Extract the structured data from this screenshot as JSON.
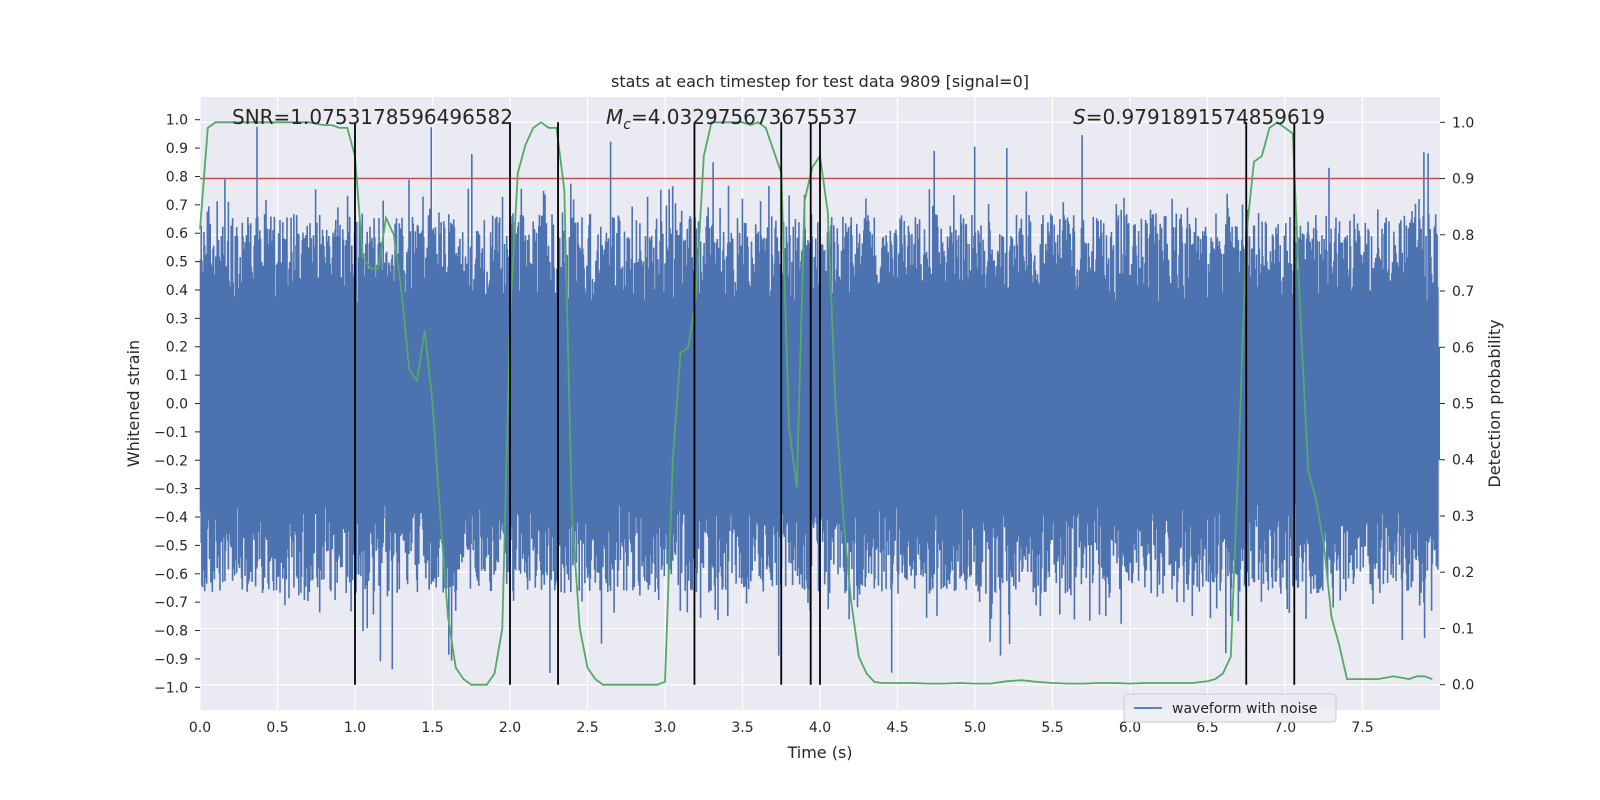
{
  "chart_data": {
    "type": "line",
    "title": "stats at each timestep for test data 9809 [signal=0]",
    "xlabel": "Time (s)",
    "ylabel": "Whitened strain",
    "y2label": "Detection probability",
    "xlim": [
      0,
      8
    ],
    "ylim": [
      -1.08,
      1.08
    ],
    "y2lim": [
      -0.045,
      1.045
    ],
    "x_ticks": [
      0.0,
      0.5,
      1.0,
      1.5,
      2.0,
      2.5,
      3.0,
      3.5,
      4.0,
      4.5,
      5.0,
      5.5,
      6.0,
      6.5,
      7.0,
      7.5
    ],
    "x_tick_labels": [
      "0.0",
      "0.5",
      "1.0",
      "1.5",
      "2.0",
      "2.5",
      "3.0",
      "3.5",
      "4.0",
      "4.5",
      "5.0",
      "5.5",
      "6.0",
      "6.5",
      "7.0",
      "7.5"
    ],
    "y_ticks": [
      1.0,
      0.9,
      0.8,
      0.7,
      0.6,
      0.5,
      0.4,
      0.3,
      0.2,
      0.1,
      0.0,
      -0.1,
      -0.2,
      -0.3,
      -0.4,
      -0.5,
      -0.6,
      -0.7,
      -0.8,
      -0.9,
      -1.0
    ],
    "y_tick_labels": [
      "1.0",
      "0.9",
      "0.8",
      "0.7",
      "0.6",
      "0.5",
      "0.4",
      "0.3",
      "0.2",
      "0.1",
      "0.0",
      "−0.1",
      "−0.2",
      "−0.3",
      "−0.4",
      "−0.5",
      "−0.6",
      "−0.7",
      "−0.8",
      "−0.9",
      "−1.0"
    ],
    "y2_ticks": [
      1.0,
      0.9,
      0.8,
      0.7,
      0.6,
      0.5,
      0.4,
      0.3,
      0.2,
      0.1,
      0.0
    ],
    "y2_tick_labels": [
      "1.0",
      "0.9",
      "0.8",
      "0.7",
      "0.6",
      "0.5",
      "0.4",
      "0.3",
      "0.2",
      "0.1",
      "0.0"
    ],
    "grid": true,
    "legend_position": "lower-right",
    "stats_text": {
      "snr": "SNR=1.0753178596496582",
      "mc_symbol": "M",
      "mc_sub": "c",
      "mc_value": "=4.032975673675537",
      "s_symbol": "S",
      "s_value": "=0.9791891574859619"
    },
    "threshold": {
      "value": 0.9,
      "axis": "right",
      "color": "#c44e52"
    },
    "vertical_lines": {
      "x": [
        1.0,
        2.0,
        2.31,
        3.19,
        3.75,
        3.94,
        4.0,
        6.75,
        7.06
      ],
      "ymin": 0.0,
      "ymax": 1.0,
      "axis": "right",
      "color": "#000000"
    },
    "series": [
      {
        "name": "waveform with noise",
        "axis": "left",
        "color": "#4c72b0",
        "kind": "noise-band",
        "x_range": [
          0,
          8
        ],
        "dense_band": [
          -0.2,
          0.2
        ],
        "typical_peaks": [
          0.4,
          0.6
        ],
        "max_peaks": [
          -1.0,
          1.0
        ]
      },
      {
        "axis": "right",
        "color": "#55a868",
        "x": [
          0.0,
          0.05,
          0.1,
          0.15,
          0.2,
          0.3,
          0.4,
          0.5,
          0.6,
          0.7,
          0.8,
          0.85,
          0.9,
          0.95,
          1.0,
          1.05,
          1.1,
          1.15,
          1.2,
          1.25,
          1.3,
          1.35,
          1.4,
          1.45,
          1.5,
          1.55,
          1.6,
          1.65,
          1.7,
          1.75,
          1.8,
          1.85,
          1.9,
          1.95,
          2.0,
          2.05,
          2.1,
          2.15,
          2.2,
          2.25,
          2.3,
          2.35,
          2.4,
          2.45,
          2.5,
          2.55,
          2.6,
          2.65,
          2.7,
          2.75,
          2.8,
          2.85,
          2.9,
          2.95,
          3.0,
          3.05,
          3.1,
          3.15,
          3.2,
          3.25,
          3.3,
          3.35,
          3.4,
          3.45,
          3.5,
          3.55,
          3.6,
          3.65,
          3.7,
          3.75,
          3.8,
          3.85,
          3.9,
          3.95,
          4.0,
          4.05,
          4.1,
          4.15,
          4.2,
          4.25,
          4.3,
          4.35,
          4.4,
          4.5,
          4.6,
          4.7,
          4.8,
          4.9,
          5.0,
          5.1,
          5.2,
          5.3,
          5.4,
          5.5,
          5.6,
          5.7,
          5.8,
          5.9,
          6.0,
          6.1,
          6.2,
          6.3,
          6.4,
          6.5,
          6.55,
          6.6,
          6.65,
          6.7,
          6.75,
          6.8,
          6.85,
          6.9,
          6.95,
          7.0,
          7.05,
          7.1,
          7.15,
          7.2,
          7.25,
          7.3,
          7.35,
          7.4,
          7.5,
          7.6,
          7.7,
          7.8,
          7.85,
          7.9,
          7.95
        ],
        "values": [
          0.81,
          0.99,
          1.0,
          1.0,
          1.0,
          1.0,
          1.0,
          1.0,
          1.0,
          1.0,
          0.995,
          0.995,
          0.99,
          0.99,
          0.94,
          0.76,
          0.74,
          0.74,
          0.83,
          0.8,
          0.7,
          0.56,
          0.54,
          0.63,
          0.5,
          0.3,
          0.12,
          0.03,
          0.01,
          0.0,
          0.0,
          0.0,
          0.02,
          0.1,
          0.65,
          0.91,
          0.96,
          0.99,
          1.0,
          0.99,
          0.99,
          0.88,
          0.3,
          0.1,
          0.03,
          0.01,
          0.0,
          0.0,
          0.0,
          0.0,
          0.0,
          0.0,
          0.0,
          0.0,
          0.005,
          0.4,
          0.59,
          0.6,
          0.69,
          0.94,
          1.0,
          1.0,
          1.0,
          1.0,
          1.0,
          0.995,
          1.0,
          0.99,
          0.95,
          0.91,
          0.46,
          0.35,
          0.86,
          0.92,
          0.94,
          0.84,
          0.5,
          0.3,
          0.15,
          0.05,
          0.02,
          0.005,
          0.003,
          0.003,
          0.003,
          0.002,
          0.002,
          0.003,
          0.002,
          0.002,
          0.006,
          0.008,
          0.005,
          0.003,
          0.002,
          0.002,
          0.003,
          0.003,
          0.002,
          0.003,
          0.003,
          0.003,
          0.003,
          0.006,
          0.01,
          0.02,
          0.05,
          0.4,
          0.8,
          0.93,
          0.94,
          0.99,
          1.0,
          0.99,
          0.98,
          0.65,
          0.38,
          0.33,
          0.25,
          0.12,
          0.07,
          0.01,
          0.01,
          0.01,
          0.015,
          0.01,
          0.015,
          0.015,
          0.01
        ]
      }
    ],
    "legend": [
      {
        "label": "waveform with noise",
        "color": "#4c72b0"
      }
    ]
  }
}
